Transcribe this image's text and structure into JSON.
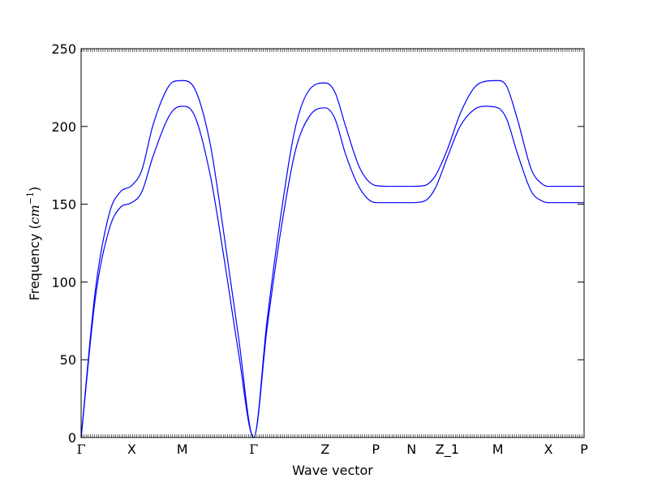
{
  "chart_data": {
    "type": "line",
    "title": "",
    "xlabel": "Wave vector",
    "ylabel": {
      "prefix": "Frequency (",
      "unit_base": "cm",
      "unit_exp": "−1",
      "suffix": ")"
    },
    "ylim": [
      0,
      250
    ],
    "yticks": [
      0,
      50,
      100,
      150,
      200,
      250
    ],
    "xticks": [
      {
        "label": "Γ",
        "pos": 0.0
      },
      {
        "label": "X",
        "pos": 0.707
      },
      {
        "label": "M",
        "pos": 1.414
      },
      {
        "label": "Γ",
        "pos": 2.414
      },
      {
        "label": "Z",
        "pos": 3.414
      },
      {
        "label": "P",
        "pos": 4.121
      },
      {
        "label": "N",
        "pos": 4.621
      },
      {
        "label": "Z_1",
        "pos": 5.121
      },
      {
        "label": "M",
        "pos": 5.828
      },
      {
        "label": "X",
        "pos": 6.535
      },
      {
        "label": "P",
        "pos": 7.035
      }
    ],
    "xlim": [
      0,
      7.035
    ],
    "grid": false,
    "line_color": "#0000ff",
    "series": [
      {
        "x": [
          0,
          0.2,
          0.4,
          0.55,
          0.707,
          0.85,
          1.0,
          1.2,
          1.3,
          1.414,
          1.55,
          1.8,
          2.0,
          2.2,
          2.414,
          2.6,
          2.8,
          3.0,
          3.2,
          3.414,
          3.55,
          3.7,
          3.9,
          4.121,
          4.3,
          4.621,
          4.8,
          4.95,
          5.121,
          5.3,
          5.5,
          5.65,
          5.828,
          5.95,
          6.1,
          6.3,
          6.45,
          6.535,
          7.035
        ],
        "y": [
          0,
          95,
          145,
          158,
          162,
          172,
          200,
          224,
          229,
          229.5,
          227,
          190,
          130,
          65,
          0,
          75,
          145,
          200,
          224,
          228,
          222,
          200,
          173,
          162,
          161.5,
          161.5,
          162,
          168,
          185,
          208,
          225,
          229,
          229.5,
          226,
          205,
          172,
          163,
          161.5,
          161.5
        ]
      },
      {
        "x": [
          0,
          0.2,
          0.4,
          0.55,
          0.707,
          0.85,
          1.0,
          1.2,
          1.3,
          1.414,
          1.55,
          1.8,
          2.0,
          2.2,
          2.414,
          2.6,
          2.8,
          3.0,
          3.2,
          3.414,
          3.55,
          3.7,
          3.9,
          4.121,
          4.3,
          4.621,
          4.8,
          4.95,
          5.121,
          5.3,
          5.5,
          5.65,
          5.828,
          5.95,
          6.1,
          6.3,
          6.45,
          6.535,
          7.035
        ],
        "y": [
          0,
          90,
          135,
          148,
          151,
          158,
          180,
          204,
          211,
          213,
          210,
          170,
          115,
          55,
          0,
          70,
          135,
          185,
          207,
          212,
          205,
          182,
          160,
          151,
          151,
          151,
          152,
          160,
          180,
          200,
          211,
          213,
          212,
          205,
          183,
          158,
          152,
          151,
          151
        ]
      }
    ]
  }
}
